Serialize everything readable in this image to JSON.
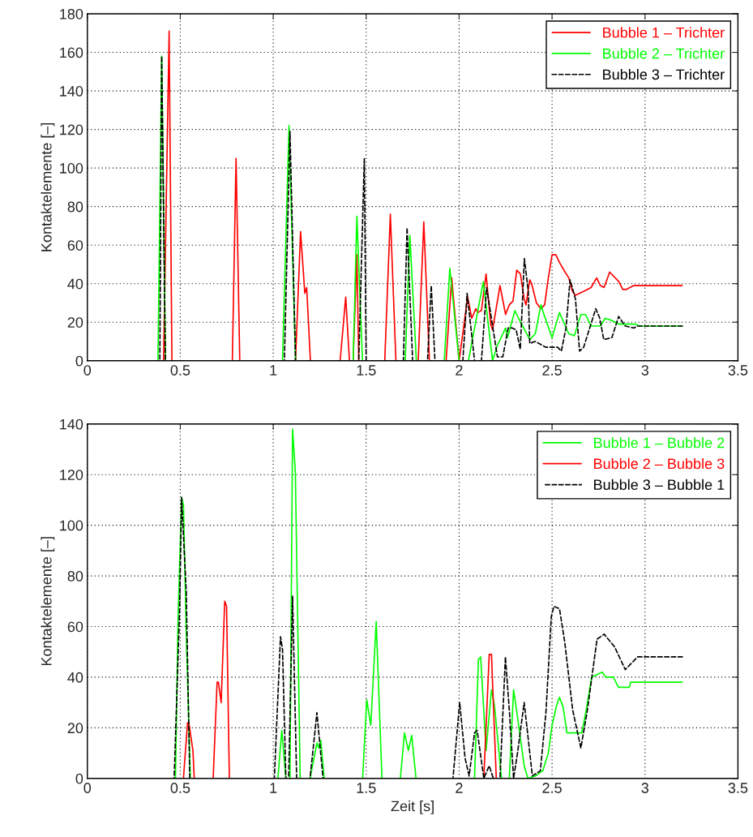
{
  "chart_data": [
    {
      "type": "line",
      "ylabel": "Kontaktelemente [–]",
      "xlim": [
        0,
        3.5
      ],
      "ylim": [
        0,
        180
      ],
      "xticks": [
        0,
        0.5,
        1,
        1.5,
        2,
        2.5,
        3,
        3.5
      ],
      "yticks": [
        0,
        20,
        40,
        60,
        80,
        100,
        120,
        140,
        160,
        180
      ],
      "grid": true,
      "legend": "top right",
      "series": [
        {
          "name": "Bubble 1 – Trichter",
          "color": "#ff0000",
          "line_style": "solid",
          "x": [
            0,
            0.41,
            0.44,
            0.455,
            0.78,
            0.8,
            0.82,
            1.12,
            1.147,
            1.17,
            1.18,
            1.2,
            1.36,
            1.39,
            1.41,
            1.43,
            1.45,
            1.46,
            1.6,
            1.63,
            1.66,
            1.78,
            1.81,
            1.84,
            1.93,
            1.96,
            2.0,
            2.046,
            2.068,
            2.09,
            2.1,
            2.12,
            2.145,
            2.17,
            2.18,
            2.22,
            2.25,
            2.27,
            2.29,
            2.31,
            2.33,
            2.35,
            2.36,
            2.38,
            2.39,
            2.416,
            2.44,
            2.46,
            2.48,
            2.5,
            2.52,
            2.54,
            2.57,
            2.59,
            2.61,
            2.626,
            2.67,
            2.71,
            2.74,
            2.76,
            2.78,
            2.81,
            2.86,
            2.88,
            2.9,
            2.94,
            3.2
          ],
          "values": [
            0,
            0,
            171,
            0,
            0,
            105,
            0,
            0,
            67,
            35,
            38,
            0,
            0,
            33,
            0,
            0,
            55,
            0,
            0,
            76,
            0,
            0,
            72,
            0,
            0,
            43,
            0,
            33,
            22,
            27,
            25,
            26,
            45,
            19,
            16,
            39,
            24,
            29,
            31,
            47,
            45,
            32,
            29,
            42,
            40,
            30,
            27,
            29,
            43,
            55,
            55,
            51,
            46,
            43,
            36,
            34,
            36,
            38,
            43,
            39,
            38,
            46,
            41,
            37,
            37,
            39,
            39
          ]
        },
        {
          "name": "Bubble 2 – Trichter",
          "color": "#00ff00",
          "line_style": "solid",
          "x": [
            0,
            0.38,
            0.4,
            0.42,
            1.05,
            1.085,
            1.12,
            1.43,
            1.45,
            1.48,
            1.71,
            1.735,
            1.77,
            1.92,
            1.95,
            2.0,
            2.05,
            2.13,
            2.18,
            2.206,
            2.25,
            2.26,
            2.3,
            2.32,
            2.38,
            2.41,
            2.44,
            2.46,
            2.5,
            2.54,
            2.59,
            2.62,
            2.655,
            2.68,
            2.71,
            2.76,
            2.785,
            2.82,
            2.86,
            2.95,
            2.97,
            3.2
          ],
          "values": [
            0,
            0,
            158,
            0,
            0,
            122,
            0,
            0,
            75,
            0,
            0,
            65,
            0,
            0,
            48,
            0,
            0,
            41,
            0,
            8,
            17,
            12,
            26,
            22,
            11,
            14,
            29,
            23,
            12,
            25,
            14,
            13,
            24,
            24,
            18,
            18,
            22,
            21,
            19,
            19,
            18,
            18
          ]
        },
        {
          "name": "Bubble 3 – Trichter",
          "color": "#000000",
          "line_style": "dashed",
          "x": [
            0,
            0.39,
            0.4,
            0.42,
            1.06,
            1.09,
            1.12,
            1.46,
            1.49,
            1.5,
            1.7,
            1.72,
            1.75,
            1.83,
            1.85,
            1.87,
            2.02,
            2.043,
            2.083,
            2.12,
            2.148,
            2.206,
            2.235,
            2.264,
            2.286,
            2.307,
            2.329,
            2.351,
            2.372,
            2.38,
            2.409,
            2.467,
            2.53,
            2.55,
            2.575,
            2.597,
            2.626,
            2.648,
            2.67,
            2.735,
            2.757,
            2.778,
            2.822,
            2.858,
            2.894,
            2.94,
            2.96,
            3.2
          ],
          "values": [
            0,
            0,
            158,
            0,
            0,
            119,
            0,
            0,
            105,
            0,
            0,
            69,
            0,
            0,
            39,
            0,
            0,
            35,
            0,
            0,
            38,
            2,
            2,
            17,
            17,
            16,
            6,
            53,
            36,
            9,
            10,
            7,
            7,
            5,
            17,
            42,
            32,
            5,
            7,
            27,
            22,
            11,
            12,
            23,
            18,
            17,
            18,
            18
          ]
        }
      ]
    },
    {
      "type": "line",
      "xlabel": "Zeit [s]",
      "ylabel": "Kontaktelemente [–]",
      "xlim": [
        0,
        3.5
      ],
      "ylim": [
        0,
        140
      ],
      "xticks": [
        0,
        0.5,
        1,
        1.5,
        2,
        2.5,
        3,
        3.5
      ],
      "yticks": [
        0,
        20,
        40,
        60,
        80,
        100,
        120,
        140
      ],
      "grid": true,
      "legend": "top right",
      "series": [
        {
          "name": "Bubble 1 – Bubble 2",
          "color": "#00ff00",
          "line_style": "solid",
          "x": [
            0,
            0.474,
            0.488,
            0.507,
            0.517,
            0.532,
            0.554,
            1.025,
            1.046,
            1.068,
            1.09,
            1.104,
            1.119,
            1.145,
            1.198,
            1.235,
            1.245,
            1.256,
            1.274,
            1.481,
            1.503,
            1.525,
            1.554,
            1.585,
            1.684,
            1.706,
            1.727,
            1.745,
            1.768,
            2.083,
            2.104,
            2.116,
            2.145,
            2.174,
            2.19,
            2.228,
            2.27,
            2.293,
            2.307,
            2.35,
            2.37,
            2.41,
            2.45,
            2.48,
            2.5,
            2.525,
            2.54,
            2.56,
            2.58,
            2.66,
            2.684,
            2.713,
            2.742,
            2.77,
            2.79,
            2.83,
            2.857,
            2.916,
            2.923,
            3.2
          ],
          "values": [
            0,
            0,
            63,
            111,
            108,
            58,
            0,
            0,
            19,
            0,
            0,
            138,
            121,
            0,
            0,
            14,
            12,
            15,
            0,
            0,
            31,
            21,
            62,
            0,
            0,
            18,
            11,
            17,
            0,
            0,
            47,
            48,
            11,
            35,
            29,
            0,
            0,
            35,
            28,
            5,
            0,
            1,
            3,
            10,
            21,
            29,
            32,
            28,
            18,
            18,
            27,
            40,
            41,
            42,
            40,
            40,
            36,
            36,
            38,
            38
          ]
        },
        {
          "name": "Bubble 2 – Bubble 3",
          "color": "#ff0000",
          "line_style": "solid",
          "x": [
            0,
            0.517,
            0.539,
            0.546,
            0.568,
            0.575,
            0.677,
            0.698,
            0.705,
            0.72,
            0.739,
            0.749,
            0.764,
            2.133,
            2.162,
            2.174,
            2.2,
            3.2
          ],
          "values": [
            0,
            0,
            22,
            22,
            11,
            0,
            0,
            38,
            38,
            30,
            70,
            68,
            0,
            0,
            49,
            49,
            0,
            0
          ]
        },
        {
          "name": "Bubble 3 – Bubble 1",
          "color": "#000000",
          "line_style": "dashed",
          "x": [
            0,
            0.467,
            0.496,
            0.507,
            0.532,
            0.551,
            1.006,
            1.039,
            1.05,
            1.068,
            1.083,
            1.104,
            1.126,
            1.198,
            1.235,
            1.268,
            1.967,
            2.003,
            2.032,
            2.054,
            2.083,
            2.097,
            2.133,
            2.162,
            2.184,
            2.22,
            2.249,
            2.271,
            2.293,
            2.316,
            2.35,
            2.394,
            2.437,
            2.467,
            2.496,
            2.51,
            2.54,
            2.568,
            2.611,
            2.655,
            2.69,
            2.742,
            2.78,
            2.836,
            2.894,
            2.96,
            3.2
          ],
          "values": [
            0,
            0,
            66,
            111,
            74,
            0,
            0,
            56,
            51,
            0,
            0,
            72,
            0,
            0,
            26,
            0,
            0,
            30,
            8,
            1,
            18,
            19,
            0,
            5,
            0,
            0,
            48,
            26,
            0,
            11,
            30,
            1,
            3,
            26,
            64,
            68,
            67,
            54,
            27,
            12,
            27,
            55,
            57,
            52,
            43,
            48,
            48
          ]
        }
      ]
    }
  ]
}
